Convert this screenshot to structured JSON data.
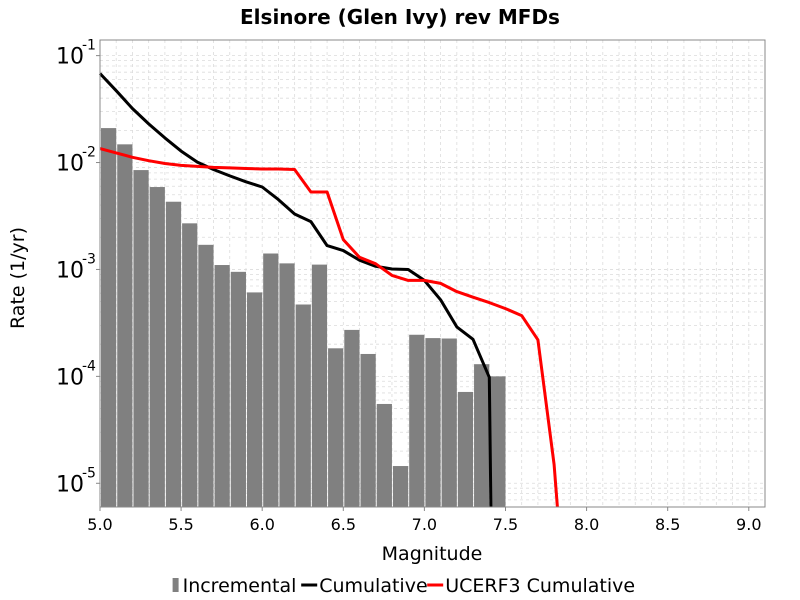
{
  "chart_data": {
    "type": "bar",
    "title": "Elsinore (Glen Ivy) rev MFDs",
    "xlabel": "Magnitude",
    "ylabel": "Rate (1/yr)",
    "xlim": [
      5.0,
      9.1
    ],
    "ylim": [
      6e-06,
      0.14
    ],
    "yscale": "log",
    "grid": true,
    "legend_position": "bottom",
    "x_ticks": [
      "5.0",
      "5.5",
      "6.0",
      "6.5",
      "7.0",
      "7.5",
      "8.0",
      "8.5",
      "9.0"
    ],
    "y_ticks": [
      {
        "base": "10",
        "exp": "-5",
        "value": 1e-05
      },
      {
        "base": "10",
        "exp": "-4",
        "value": 0.0001
      },
      {
        "base": "10",
        "exp": "-3",
        "value": 0.001
      },
      {
        "base": "10",
        "exp": "-2",
        "value": 0.01
      },
      {
        "base": "10",
        "exp": "-1",
        "value": 0.1
      }
    ],
    "series": [
      {
        "name": "Incremental",
        "kind": "bar",
        "color": "#808080",
        "x": [
          5.05,
          5.15,
          5.25,
          5.35,
          5.45,
          5.55,
          5.65,
          5.75,
          5.85,
          5.95,
          6.05,
          6.15,
          6.25,
          6.35,
          6.45,
          6.55,
          6.65,
          6.75,
          6.85,
          6.95,
          7.05,
          7.15,
          7.25,
          7.35,
          7.45
        ],
        "values": [
          0.021,
          0.0148,
          0.0085,
          0.0059,
          0.0043,
          0.0027,
          0.0017,
          0.0011,
          0.00095,
          0.00061,
          0.00141,
          0.00114,
          0.00047,
          0.00111,
          0.000183,
          0.000272,
          0.000162,
          5.52e-05,
          1.45e-05,
          0.000245,
          0.000228,
          0.000226,
          7.15e-05,
          0.00013,
          0.0001
        ]
      },
      {
        "name": "Cumulative",
        "kind": "line",
        "color": "#000000",
        "x": [
          5.0,
          5.1,
          5.2,
          5.3,
          5.4,
          5.5,
          5.6,
          5.7,
          5.8,
          5.9,
          6.0,
          6.1,
          6.2,
          6.3,
          6.4,
          6.5,
          6.6,
          6.7,
          6.8,
          6.9,
          7.0,
          7.1,
          7.2,
          7.3,
          7.4,
          7.41
        ],
        "values": [
          0.068,
          0.047,
          0.032,
          0.023,
          0.017,
          0.0128,
          0.0101,
          0.0086,
          0.0075,
          0.0066,
          0.0059,
          0.0045,
          0.0033,
          0.0028,
          0.00167,
          0.0015,
          0.00122,
          0.00107,
          0.00101,
          0.001,
          0.00079,
          0.00052,
          0.00029,
          0.000222,
          9.8e-05,
          5e-06
        ]
      },
      {
        "name": "UCERF3 Cumulative",
        "kind": "line",
        "color": "#ff0000",
        "x": [
          5.0,
          5.1,
          5.2,
          5.3,
          5.4,
          5.5,
          5.6,
          5.7,
          5.8,
          5.9,
          6.0,
          6.1,
          6.2,
          6.3,
          6.4,
          6.5,
          6.6,
          6.7,
          6.8,
          6.9,
          7.0,
          7.1,
          7.2,
          7.3,
          7.4,
          7.5,
          7.6,
          7.7,
          7.8,
          7.82
        ],
        "values": [
          0.0135,
          0.0123,
          0.0112,
          0.0104,
          0.0098,
          0.0094,
          0.0092,
          0.009,
          0.0089,
          0.0088,
          0.0087,
          0.0087,
          0.0086,
          0.0053,
          0.0053,
          0.0019,
          0.0013,
          0.00113,
          0.00088,
          0.00079,
          0.00079,
          0.00074,
          0.00062,
          0.00055,
          0.00049,
          0.00043,
          0.00037,
          0.00022,
          1.5e-05,
          5e-06
        ]
      }
    ]
  }
}
